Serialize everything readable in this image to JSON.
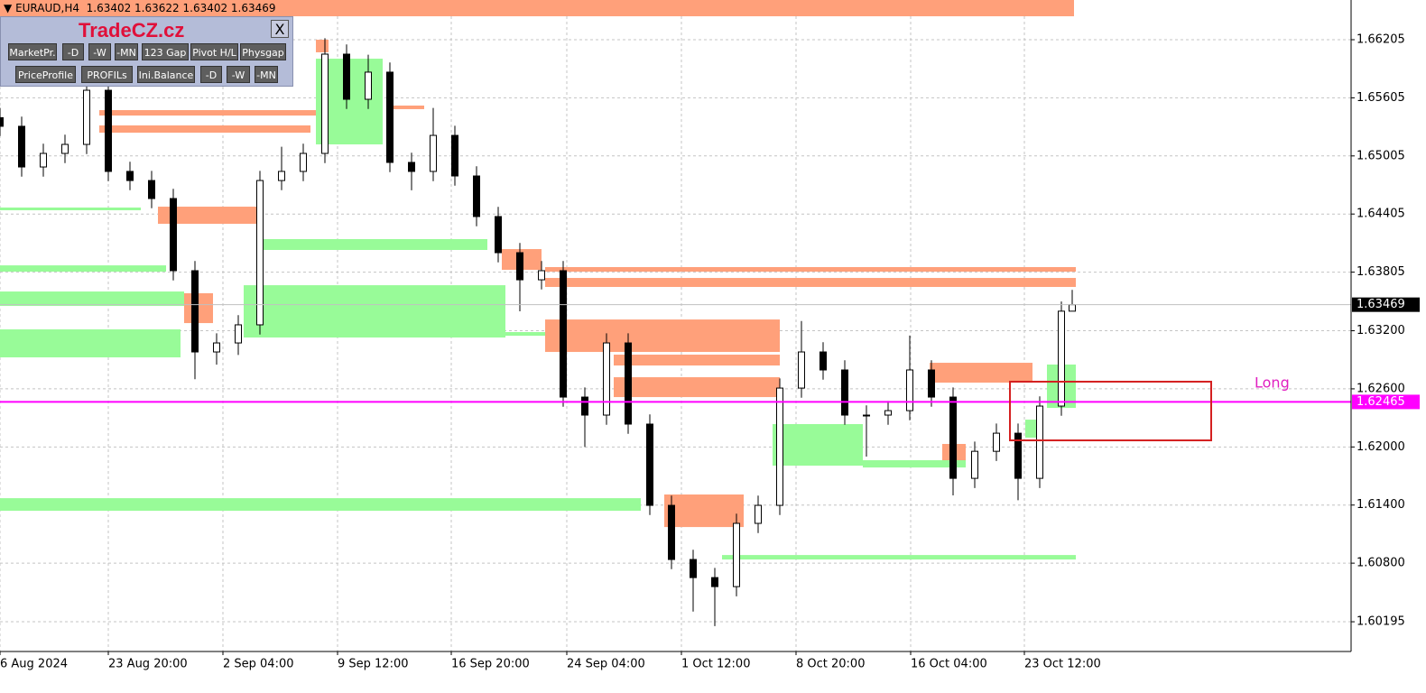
{
  "chart_data": {
    "type": "candlestick",
    "title": "EURAUD,H4  1.63402 1.63622 1.63402 1.63469",
    "grid": true,
    "xlim": [
      0,
      374.25
    ],
    "ylim": [
      1.59888,
      1.66615
    ],
    "yticks": [
      1.66205,
      1.65605,
      1.65005,
      1.64405,
      1.63805,
      {
        "value": 1.632,
        "label": "1.63200"
      },
      {
        "value": 1.626,
        "label": "1.62600"
      },
      {
        "value": 1.62,
        "label": "1.62000"
      },
      {
        "value": 1.614,
        "label": "1.61400"
      },
      {
        "value": 1.608,
        "label": "1.60800"
      },
      1.60195
    ],
    "xticks": [
      {
        "value": 0,
        "label": "6 Aug 2024"
      },
      {
        "value": 30,
        "label": "23 Aug 20:00"
      },
      {
        "value": 61.75,
        "label": "2 Sep 04:00"
      },
      {
        "value": 93.5,
        "label": "9 Sep 12:00"
      },
      {
        "value": 125,
        "label": "16 Sep 20:00"
      },
      {
        "value": 157,
        "label": "24 Sep 04:00"
      },
      {
        "value": 188.75,
        "label": "1 Oct 12:00"
      },
      {
        "value": 220.5,
        "label": "8 Oct 20:00"
      },
      {
        "value": 252.25,
        "label": "16 Oct 04:00"
      },
      {
        "value": 283.75,
        "label": "23 Oct 12:00"
      }
    ],
    "x": [
      0,
      6,
      12,
      18,
      24,
      30,
      36,
      42,
      48,
      54,
      60,
      66,
      72,
      78,
      84,
      90,
      96,
      102,
      108,
      114,
      120,
      126,
      132,
      138,
      144,
      150,
      156,
      162,
      168,
      174,
      180,
      186,
      192,
      198,
      204,
      210,
      216,
      222,
      228,
      234,
      240,
      246,
      252,
      258,
      264,
      270,
      276,
      282,
      288,
      294,
      297
    ],
    "open": [
      1.654,
      1.65311,
      1.64891,
      1.65031,
      1.65124,
      1.65683,
      1.64845,
      1.64751,
      1.64565,
      1.6382,
      1.62981,
      1.63074,
      1.63261,
      1.64751,
      1.64845,
      1.65031,
      1.66056,
      1.6559,
      1.6587,
      1.64938,
      1.64845,
      1.65217,
      1.64798,
      1.64379,
      1.64006,
      1.63726,
      1.6382,
      1.62515,
      1.62329,
      1.63074,
      1.62236,
      1.61397,
      1.60838,
      1.60651,
      1.60558,
      1.61211,
      1.61397,
      1.62608,
      1.62981,
      1.62795,
      1.62329,
      1.62329,
      1.62375,
      1.62795,
      1.62515,
      1.61676,
      1.61955,
      1.62142,
      1.61676,
      1.62422,
      1.63402
    ],
    "high": [
      1.655,
      1.65411,
      1.65131,
      1.65224,
      1.658,
      1.65783,
      1.64945,
      1.64851,
      1.64665,
      1.6392,
      1.63174,
      1.63361,
      1.64851,
      1.651,
      1.65131,
      1.6622,
      1.66156,
      1.6605,
      1.6597,
      1.65038,
      1.655,
      1.65317,
      1.64898,
      1.64479,
      1.64106,
      1.6392,
      1.6392,
      1.62615,
      1.63174,
      1.63174,
      1.62336,
      1.61497,
      1.60938,
      1.60751,
      1.61311,
      1.61497,
      1.62708,
      1.633,
      1.63081,
      1.62895,
      1.62429,
      1.62475,
      1.6315,
      1.62895,
      1.62615,
      1.62055,
      1.62242,
      1.62242,
      1.62522,
      1.63502,
      1.63622
    ],
    "low": [
      1.65211,
      1.64791,
      1.64791,
      1.64931,
      1.65024,
      1.64745,
      1.64651,
      1.64465,
      1.6372,
      1.627,
      1.6285,
      1.6295,
      1.63161,
      1.64651,
      1.64745,
      1.64931,
      1.6549,
      1.6549,
      1.64838,
      1.6465,
      1.64745,
      1.64698,
      1.64279,
      1.63906,
      1.634,
      1.63626,
      1.62415,
      1.62,
      1.62229,
      1.62136,
      1.61297,
      1.60738,
      1.603,
      1.6015,
      1.60458,
      1.61111,
      1.61297,
      1.62508,
      1.62695,
      1.62229,
      1.619,
      1.62229,
      1.62275,
      1.62415,
      1.615,
      1.61576,
      1.61855,
      1.6145,
      1.61576,
      1.62322,
      1.63402
    ],
    "close": [
      1.65311,
      1.64891,
      1.65031,
      1.65124,
      1.65683,
      1.64845,
      1.64751,
      1.64565,
      1.6382,
      1.62981,
      1.63074,
      1.63261,
      1.64751,
      1.64845,
      1.65031,
      1.66056,
      1.6559,
      1.6587,
      1.64938,
      1.64845,
      1.65217,
      1.64798,
      1.64379,
      1.64006,
      1.63726,
      1.6382,
      1.62515,
      1.62329,
      1.63074,
      1.62236,
      1.61397,
      1.60838,
      1.60651,
      1.60558,
      1.61211,
      1.61397,
      1.62608,
      1.62981,
      1.62795,
      1.62329,
      1.62329,
      1.62375,
      1.62795,
      1.62515,
      1.61676,
      1.61955,
      1.62142,
      1.61676,
      1.62422,
      1.63402,
      1.63469
    ],
    "supply_color": "#ffa07a",
    "demand_color": "#98fb98",
    "supply_zones": [
      [
        0,
        297.5,
        1.66447,
        1.66615
      ],
      [
        87.5,
        91,
        1.66075,
        1.66205
      ],
      [
        27.5,
        87.5,
        1.65422,
        1.65478
      ],
      [
        27.5,
        86,
        1.65245,
        1.6532
      ],
      [
        107.5,
        117.5,
        1.65488,
        1.65525
      ],
      [
        43.75,
        71.25,
        1.64304,
        1.64481
      ],
      [
        51,
        59,
        1.63279,
        1.63587
      ],
      [
        139,
        150,
        1.63829,
        1.64043
      ],
      [
        151,
        298,
        1.6381,
        1.63857
      ],
      [
        151,
        298,
        1.63652,
        1.63745
      ],
      [
        151,
        216,
        1.62981,
        1.63316
      ],
      [
        170,
        216,
        1.62841,
        1.62953
      ],
      [
        170,
        216,
        1.62515,
        1.6272
      ],
      [
        184,
        206,
        1.61173,
        1.61509
      ],
      [
        257.5,
        286,
        1.62664,
        1.62869
      ],
      [
        261,
        267.5,
        1.61807,
        1.62031
      ]
    ],
    "demand_zones": [
      [
        0,
        46,
        1.6381,
        1.63875
      ],
      [
        0,
        51,
        1.63456,
        1.63605
      ],
      [
        0,
        50,
        1.62925,
        1.63214
      ],
      [
        0,
        177.5,
        1.61341,
        1.61471
      ],
      [
        71,
        135,
        1.64034,
        1.64146
      ],
      [
        67.5,
        140,
        1.6313,
        1.6367
      ],
      [
        140,
        151,
        1.63148,
        1.63186
      ],
      [
        87.5,
        106,
        1.65124,
        1.66009
      ],
      [
        214,
        239,
        1.61807,
        1.62236
      ],
      [
        239,
        267.5,
        1.61788,
        1.61863
      ],
      [
        200,
        298,
        1.60838,
        1.60884
      ],
      [
        290,
        298,
        1.62403,
        1.62851
      ],
      [
        284,
        289,
        1.62096,
        1.62282
      ],
      [
        0,
        39,
        1.64444,
        1.64472
      ]
    ],
    "price_lines": [
      {
        "value": 1.63469,
        "color": "#c0c0c0",
        "tag_color": "#000000"
      },
      {
        "value": 1.62465,
        "color": "#ff00ff",
        "tag_color": "#ff00ff"
      }
    ],
    "box": {
      "label": "Long",
      "x": [
        279.75,
        335.5
      ],
      "y": [
        1.62068,
        1.62674
      ],
      "color": "#d42020",
      "label_color": "#e020c0"
    }
  },
  "panel": {
    "brand": "TradeCZ.cz",
    "close": "X",
    "row1": [
      "MarketPr.",
      "-D",
      "-W",
      "-MN",
      "123 Gap",
      "Pivot H/L",
      "Physgap"
    ],
    "row2": [
      "PriceProfile",
      "PROFILs",
      "Ini.Balance",
      "-D",
      "-W",
      "-MN"
    ]
  }
}
